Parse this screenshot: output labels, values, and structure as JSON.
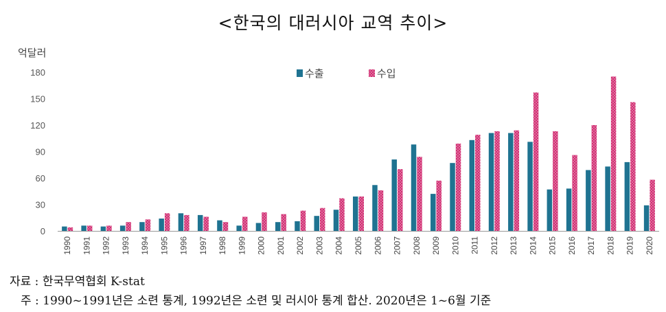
{
  "header": {
    "title": "<한국의 대러시아 교역 추이>"
  },
  "footer": {
    "source": "자료 : 한국무역협회 K-stat",
    "note": "주 : 1990~1991년은 소련 통계, 1992년은 소련 및 러시아 통계 합산. 2020년은 1~6월 기준"
  },
  "chart_data": {
    "type": "bar",
    "title": "<한국의 대러시아 교역 추이>",
    "ylabel": "억달러",
    "xlabel": "",
    "ylim": [
      0,
      180
    ],
    "yticks": [
      0,
      30,
      60,
      90,
      120,
      150,
      180
    ],
    "grid": false,
    "legend_position": "top-center",
    "categories": [
      "1990",
      "1991",
      "1992",
      "1993",
      "1994",
      "1995",
      "1996",
      "1997",
      "1998",
      "1999",
      "2000",
      "2001",
      "2002",
      "2003",
      "2004",
      "2005",
      "2006",
      "2007",
      "2008",
      "2009",
      "2010",
      "2011",
      "2012",
      "2013",
      "2014",
      "2015",
      "2016",
      "2017",
      "2018",
      "2019",
      "2020"
    ],
    "series": [
      {
        "name": "수출",
        "color": "#1f7391",
        "values": [
          5,
          6,
          5,
          6,
          10,
          14,
          20,
          18,
          12,
          6,
          9,
          10,
          11,
          17,
          24,
          39,
          52,
          81,
          98,
          42,
          77,
          103,
          111,
          111,
          101,
          47,
          48,
          69,
          73,
          78,
          29
        ]
      },
      {
        "name": "수입",
        "color": "#d12f73",
        "values": [
          4,
          6,
          6,
          10,
          13,
          20,
          18,
          16,
          10,
          16,
          21,
          19,
          23,
          26,
          37,
          39,
          46,
          70,
          84,
          57,
          99,
          109,
          113,
          114,
          157,
          113,
          86,
          120,
          175,
          146,
          58
        ]
      }
    ]
  }
}
